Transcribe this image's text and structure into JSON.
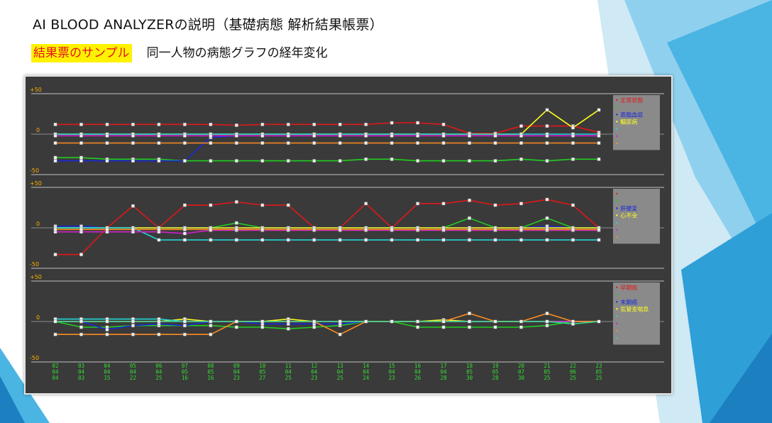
{
  "slide": {
    "title": "AI BLOOD  ANALYZERの説明（基礎病態  解析結果帳票）",
    "sample_label": "結果票のサンプル",
    "subtitle": "同一人物の病態グラフの経年変化"
  },
  "colors": {
    "chart_bg": "#3a3a3a",
    "grid": "#d0d0d0",
    "axis_text": "#ffb000",
    "date_text": "#33dd33",
    "legend_bg": "#8a8a8a",
    "sample_highlight": "#fff200",
    "sample_text": "#e4141e"
  },
  "chart_data": [
    {
      "type": "line",
      "panel": "top",
      "ylim": [
        -50,
        50
      ],
      "yticks": [
        "+50",
        "0",
        "-50"
      ],
      "categories": [
        "02 04 04",
        "03 04 03",
        "04 04 15",
        "05 04 22",
        "06 04 25",
        "07 05 16",
        "08 05 16",
        "09 04 23",
        "10 05 27",
        "11 04 25",
        "12 04 23",
        "13 04 25",
        "14 04 24",
        "15 04 23",
        "16 04 26",
        "17 04 28",
        "18 05 30",
        "19 05 28",
        "20 07 30",
        "21 05 25",
        "22 06 25",
        "23 05 25"
      ],
      "series": [
        {
          "name": "正常状態",
          "color": "#e01818",
          "values": [
            12,
            12,
            12,
            12,
            12,
            12,
            12,
            11,
            12,
            12,
            12,
            12,
            12,
            14,
            14,
            12,
            1,
            1,
            10,
            10,
            10,
            2
          ]
        },
        {
          "name": "",
          "color": "#20d020",
          "values": [
            -29,
            -29,
            -31,
            -31,
            -31,
            -33,
            -33,
            -33,
            -33,
            -33,
            -33,
            -33,
            -31,
            -31,
            -33,
            -33,
            -33,
            -33,
            -31,
            -33,
            -31,
            -31
          ]
        },
        {
          "name": "高脂血症",
          "color": "#1828d8",
          "values": [
            -33,
            -33,
            -33,
            -33,
            -33,
            -33,
            -4,
            -2,
            -2,
            -2,
            -2,
            -2,
            -2,
            -2,
            -2,
            -2,
            -2,
            -2,
            -2,
            -2,
            -2,
            -2
          ]
        },
        {
          "name": "糖尿病",
          "color": "#ffff20",
          "values": [
            0,
            0,
            0,
            0,
            0,
            0,
            0,
            0,
            0,
            0,
            0,
            0,
            0,
            0,
            0,
            0,
            0,
            0,
            0,
            30,
            8,
            30
          ]
        },
        {
          "name": "",
          "color": "#20d8d8",
          "values": [
            0,
            0,
            0,
            0,
            0,
            0,
            0,
            0,
            0,
            0,
            0,
            0,
            0,
            0,
            0,
            0,
            0,
            0,
            0,
            0,
            0,
            0
          ]
        },
        {
          "name": "",
          "color": "#d020d0",
          "values": [
            -2,
            -2,
            -2,
            -2,
            -2,
            -2,
            -2,
            -2,
            -2,
            -2,
            -2,
            -2,
            -2,
            -2,
            -2,
            -2,
            -2,
            -2,
            -2,
            -2,
            -2,
            -2
          ]
        },
        {
          "name": "",
          "color": "#ff8c20",
          "values": [
            -11,
            -11,
            -11,
            -11,
            -11,
            -11,
            -11,
            -11,
            -11,
            -11,
            -11,
            -11,
            -11,
            -11,
            -11,
            -11,
            -11,
            -11,
            -11,
            -11,
            -11,
            -11
          ]
        }
      ]
    },
    {
      "type": "line",
      "panel": "middle",
      "ylim": [
        -50,
        50
      ],
      "yticks": [
        "+50",
        "0",
        "-50"
      ],
      "categories": [
        "02 04 04",
        "03 04 03",
        "04 04 15",
        "05 04 22",
        "06 04 25",
        "07 05 16",
        "08 05 16",
        "09 04 23",
        "10 05 27",
        "11 04 25",
        "12 04 23",
        "13 04 25",
        "14 04 24",
        "15 04 23",
        "16 04 26",
        "17 04 28",
        "18 05 30",
        "19 05 28",
        "20 07 30",
        "21 05 25",
        "22 06 25",
        "23 05 25"
      ],
      "series": [
        {
          "name": "",
          "color": "#e01818",
          "values": [
            -33,
            -33,
            0,
            27,
            0,
            28,
            28,
            32,
            28,
            28,
            0,
            0,
            30,
            0,
            30,
            30,
            34,
            28,
            30,
            35,
            28,
            0
          ]
        },
        {
          "name": "",
          "color": "#20d020",
          "values": [
            0,
            0,
            0,
            0,
            0,
            0,
            0,
            6,
            0,
            0,
            0,
            0,
            0,
            0,
            0,
            0,
            12,
            0,
            0,
            12,
            0,
            0
          ]
        },
        {
          "name": "肝硬変",
          "color": "#1828d8",
          "values": [
            2,
            2,
            0,
            0,
            0,
            0,
            0,
            0,
            0,
            0,
            0,
            0,
            0,
            0,
            0,
            0,
            0,
            0,
            0,
            2,
            0,
            0
          ]
        },
        {
          "name": "心不全",
          "color": "#ffff20",
          "values": [
            0,
            0,
            0,
            0,
            0,
            0,
            0,
            0,
            0,
            0,
            0,
            0,
            0,
            0,
            0,
            0,
            0,
            0,
            0,
            0,
            0,
            0
          ]
        },
        {
          "name": "",
          "color": "#20d8d8",
          "values": [
            0,
            0,
            0,
            0,
            -15,
            -15,
            -15,
            -15,
            -15,
            -15,
            -15,
            -15,
            -15,
            -15,
            -15,
            -15,
            -15,
            -15,
            -15,
            -15,
            -15,
            -15
          ]
        },
        {
          "name": "",
          "color": "#d020d0",
          "values": [
            -5,
            -5,
            -5,
            -5,
            -5,
            -7,
            -3,
            -3,
            -3,
            -3,
            -3,
            -3,
            -3,
            -3,
            -3,
            -3,
            -3,
            -3,
            -3,
            -3,
            -3,
            -3
          ]
        },
        {
          "name": "",
          "color": "#ff8c20",
          "values": [
            -2,
            -2,
            -2,
            -2,
            -2,
            -2,
            -2,
            -2,
            -2,
            -2,
            -2,
            -2,
            -2,
            -2,
            -2,
            -2,
            -2,
            -2,
            -2,
            -2,
            -2,
            -2
          ]
        }
      ]
    },
    {
      "type": "line",
      "panel": "bottom",
      "ylim": [
        -50,
        50
      ],
      "yticks": [
        "+50",
        "0",
        "-50"
      ],
      "categories": [
        "02 04 04",
        "03 04 03",
        "04 04 15",
        "05 04 22",
        "06 04 25",
        "07 05 16",
        "08 05 16",
        "09 04 23",
        "10 05 27",
        "11 04 25",
        "12 04 23",
        "13 04 25",
        "14 04 24",
        "15 04 23",
        "16 04 26",
        "17 04 28",
        "18 05 30",
        "19 05 28",
        "20 07 30",
        "21 05 25",
        "22 06 25",
        "23 05 25"
      ],
      "series": [
        {
          "name": "早期癌",
          "color": "#e01818",
          "values": [
            0,
            0,
            0,
            0,
            0,
            0,
            0,
            0,
            0,
            0,
            0,
            0,
            0,
            0,
            0,
            0,
            0,
            0,
            0,
            0,
            0,
            0
          ]
        },
        {
          "name": "",
          "color": "#20d020",
          "values": [
            0,
            -7,
            -7,
            -5,
            -5,
            -5,
            -5,
            -7,
            -7,
            -9,
            -7,
            -5,
            0,
            0,
            -7,
            -7,
            -7,
            -7,
            -7,
            -5,
            0,
            0
          ]
        },
        {
          "name": "末期癌",
          "color": "#1828d8",
          "values": [
            0,
            0,
            -10,
            -5,
            -3,
            -5,
            0,
            0,
            -3,
            -3,
            -3,
            -3,
            0,
            0,
            0,
            0,
            0,
            0,
            0,
            0,
            0,
            0
          ]
        },
        {
          "name": "気管支喘息",
          "color": "#ffff20",
          "values": [
            0,
            0,
            0,
            0,
            0,
            3,
            0,
            0,
            0,
            3,
            0,
            0,
            0,
            0,
            0,
            2,
            0,
            0,
            0,
            0,
            0,
            0
          ]
        },
        {
          "name": "",
          "color": "#20d8d8",
          "values": [
            3,
            3,
            3,
            3,
            3,
            0,
            0,
            0,
            0,
            0,
            0,
            0,
            0,
            0,
            0,
            0,
            0,
            0,
            0,
            0,
            0,
            0
          ]
        },
        {
          "name": "",
          "color": "#d020d0",
          "values": [
            0,
            0,
            0,
            0,
            0,
            0,
            0,
            0,
            0,
            0,
            0,
            0,
            0,
            0,
            0,
            0,
            0,
            0,
            0,
            0,
            0,
            0
          ]
        },
        {
          "name": "",
          "color": "#ff8c20",
          "values": [
            -16,
            -16,
            -16,
            -16,
            -16,
            -16,
            -16,
            0,
            0,
            0,
            0,
            -16,
            0,
            0,
            0,
            0,
            10,
            0,
            0,
            10,
            0,
            0
          ]
        },
        {
          "name": "",
          "color": "#2ee08a",
          "values": [
            0,
            0,
            0,
            0,
            0,
            0,
            0,
            0,
            0,
            0,
            0,
            0,
            0,
            0,
            0,
            0,
            0,
            0,
            0,
            0,
            -3,
            0
          ]
        }
      ]
    }
  ]
}
